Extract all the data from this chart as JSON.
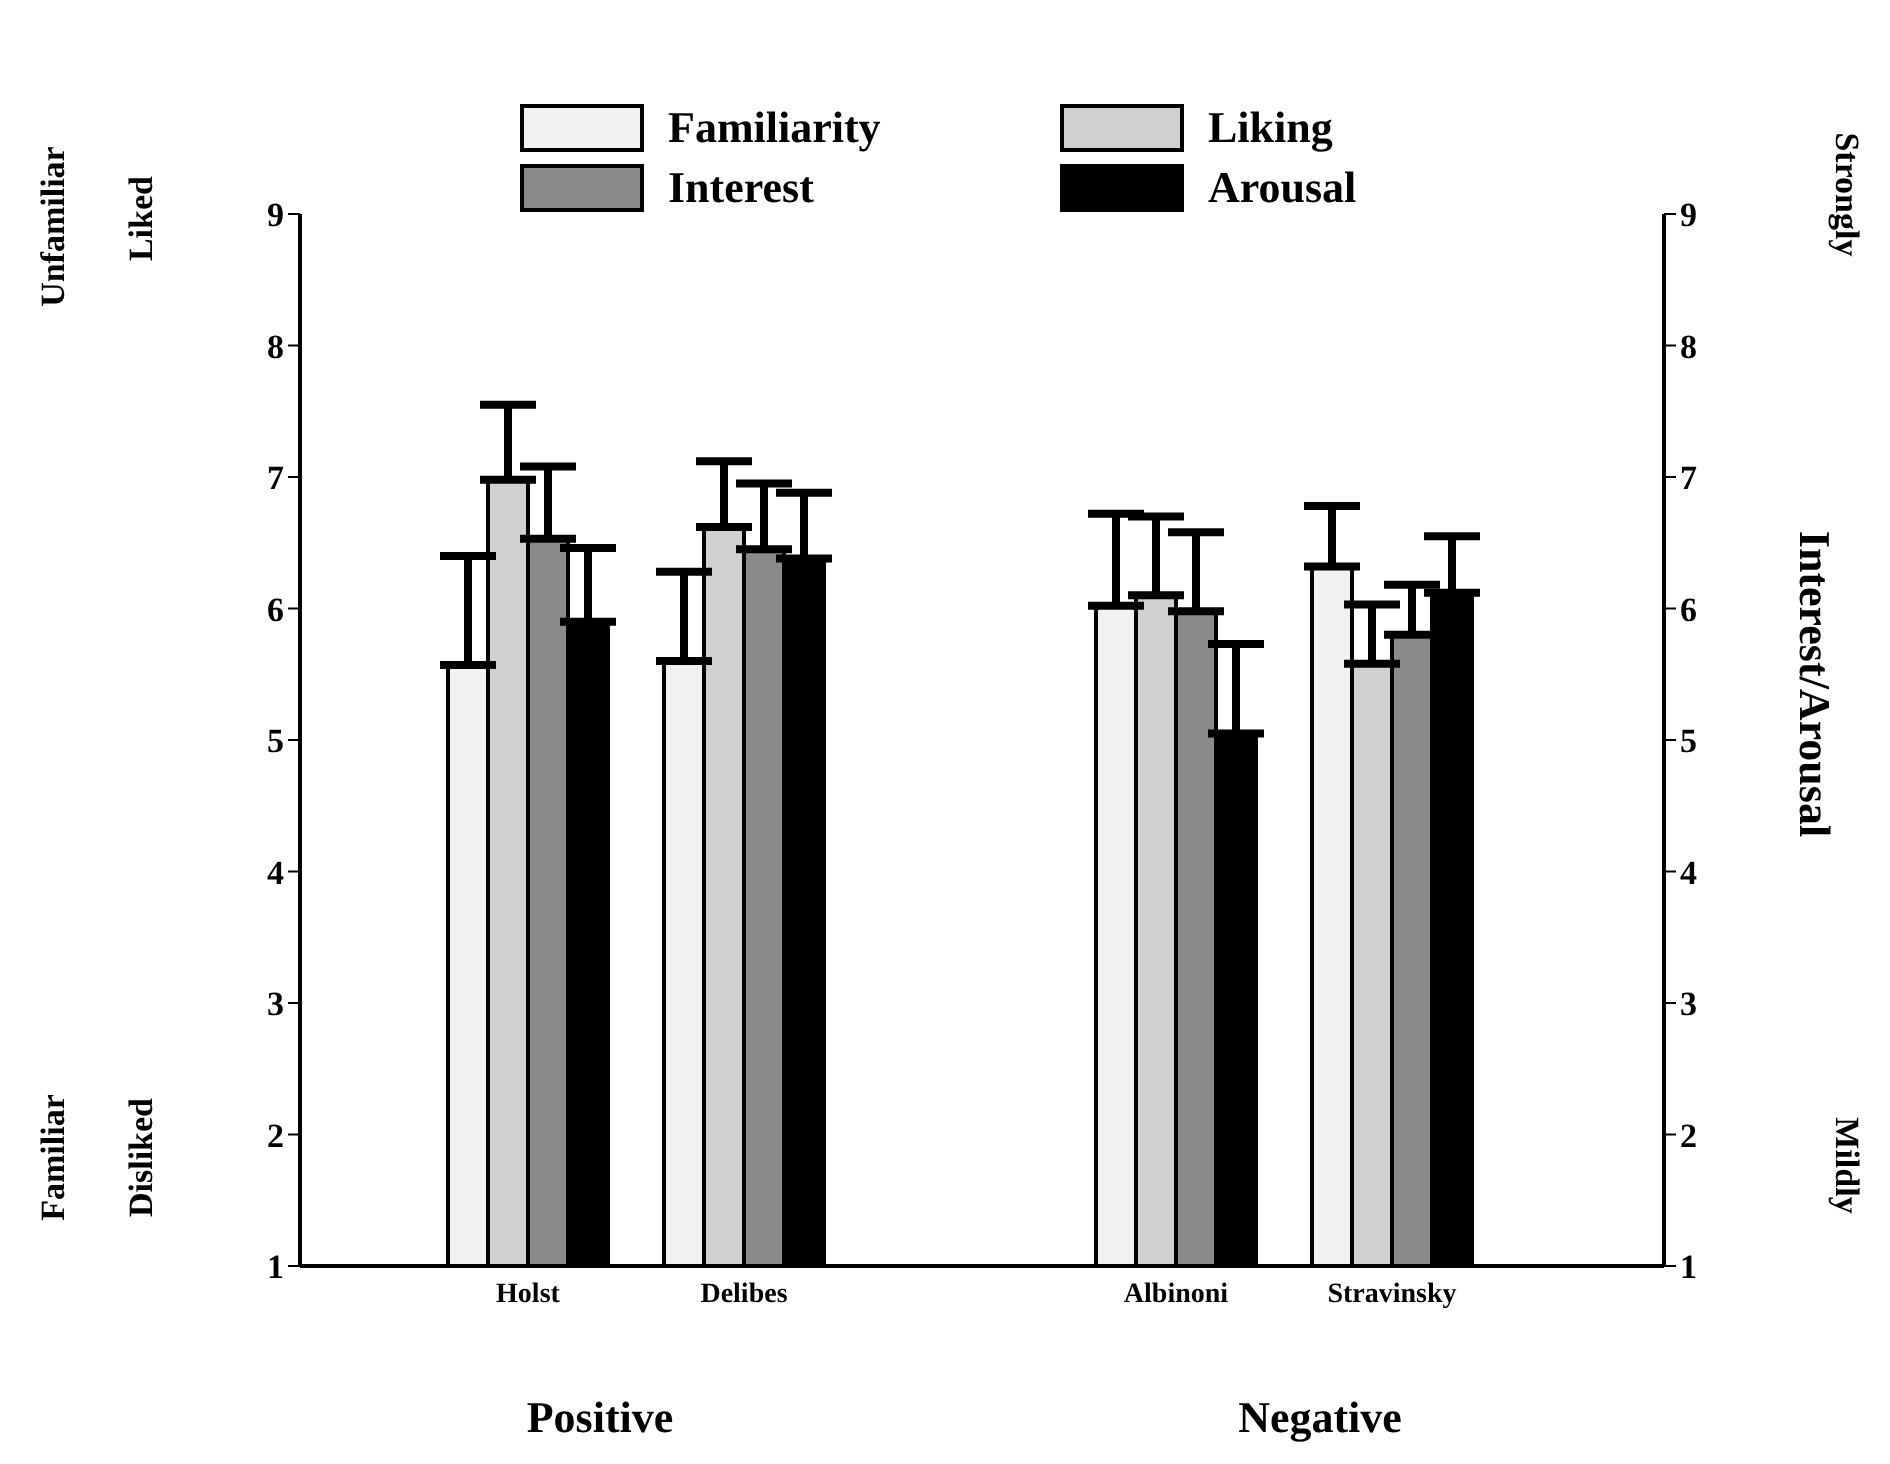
{
  "chart_data": {
    "type": "bar",
    "categories": [
      "Holst",
      "Delibes",
      null,
      "Albinoni",
      "Stravinsky"
    ],
    "series": [
      {
        "name": "Familiarity",
        "color": "#f2f2f2",
        "values": [
          5.57,
          5.6,
          null,
          6.02,
          6.32
        ],
        "errors": [
          [
            5.57,
            6.4
          ],
          [
            5.6,
            6.28
          ],
          null,
          [
            6.02,
            6.72
          ],
          [
            6.32,
            6.78
          ]
        ]
      },
      {
        "name": "Liking",
        "color": "#d0d0d0",
        "values": [
          6.98,
          6.62,
          null,
          6.1,
          5.58
        ],
        "errors": [
          [
            6.98,
            7.55
          ],
          [
            6.62,
            7.12
          ],
          null,
          [
            6.1,
            6.7
          ],
          [
            5.58,
            6.03
          ]
        ]
      },
      {
        "name": "Interest",
        "color": "#8a8a8a",
        "values": [
          6.53,
          6.45,
          null,
          5.98,
          5.8
        ],
        "errors": [
          [
            6.53,
            7.08
          ],
          [
            6.45,
            6.95
          ],
          null,
          [
            5.98,
            6.58
          ],
          [
            5.8,
            6.18
          ]
        ]
      },
      {
        "name": "Arousal",
        "color": "#000000",
        "values": [
          5.9,
          6.38,
          null,
          5.05,
          6.12
        ],
        "errors": [
          [
            5.9,
            6.46
          ],
          [
            6.38,
            6.88
          ],
          null,
          [
            5.05,
            5.73
          ],
          [
            6.12,
            6.55
          ]
        ]
      }
    ],
    "ylim": [
      1,
      9
    ],
    "yticks": [
      1,
      2,
      3,
      4,
      5,
      6,
      7,
      8,
      9
    ],
    "y2lim": [
      1,
      9
    ],
    "y2ticks": [
      1,
      2,
      3,
      4,
      5,
      6,
      7,
      8,
      9
    ],
    "y2label": "Interest/Arousal",
    "annotations": [
      "Unfamiliar",
      "Liked",
      "Familiar",
      "Disliked",
      "Strongly",
      "Mildly",
      "Positive",
      "Negative"
    ],
    "legend": "top"
  }
}
